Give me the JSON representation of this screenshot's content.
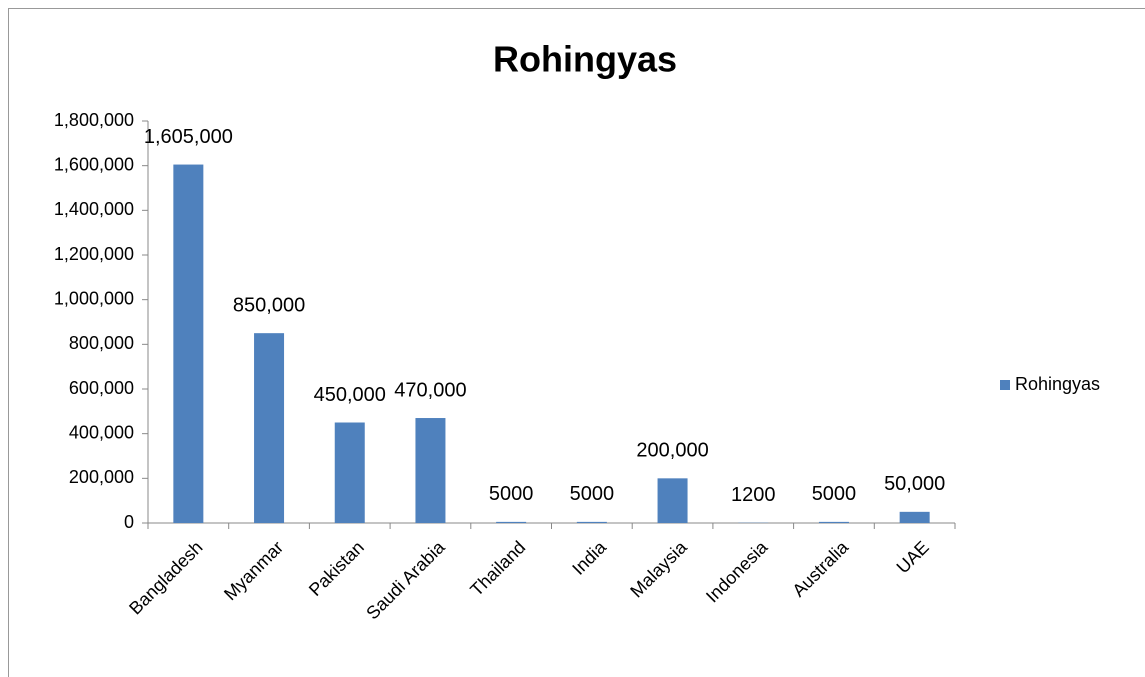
{
  "chart_data": {
    "type": "bar",
    "title": "Rohingyas",
    "categories": [
      "Bangladesh",
      "Myanmar",
      "Pakistan",
      "Saudi Arabia",
      "Thailand",
      "India",
      "Malaysia",
      "Indonesia",
      "Australia",
      "UAE"
    ],
    "series": [
      {
        "name": "Rohingyas",
        "color": "#4f81bd",
        "values": [
          1605000,
          850000,
          450000,
          470000,
          5000,
          5000,
          200000,
          1200,
          5000,
          50000
        ],
        "value_labels": [
          "1,605,000",
          "850,000",
          "450,000",
          "470,000",
          "5000",
          "5000",
          "200,000",
          "1200",
          "5000",
          "50,000"
        ]
      }
    ],
    "ylim": [
      0,
      1800000
    ],
    "yticks": [
      0,
      {
        "value": 200000,
        "label": "200,000"
      },
      {
        "value": 400000,
        "label": "400,000"
      },
      {
        "value": 600000,
        "label": "600,000"
      },
      {
        "value": 800000,
        "label": "800,000"
      },
      {
        "value": 1000000,
        "label": "1,000,000"
      },
      {
        "value": 1200000,
        "label": "1,200,000"
      },
      {
        "value": 1400000,
        "label": "1,400,000"
      },
      {
        "value": 1600000,
        "label": "1,600,000"
      },
      {
        "value": 1800000,
        "label": "1,800,000"
      }
    ],
    "grid": false,
    "legend": "right"
  }
}
